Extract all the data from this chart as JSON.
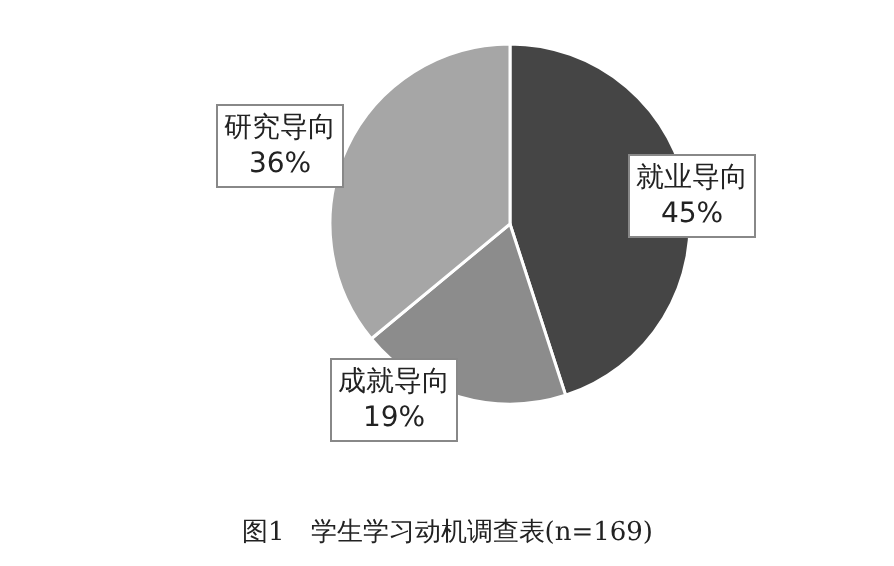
{
  "chart_data": {
    "type": "pie",
    "title": "图1　学生学习动机调查表(n=169)",
    "categories": [
      "就业导向",
      "成就导向",
      "研究导向"
    ],
    "values": [
      45,
      19,
      36
    ],
    "value_labels": [
      "45%",
      "19%",
      "36%"
    ],
    "colors": [
      "#454545",
      "#8c8c8c",
      "#a6a6a6"
    ],
    "legend": false
  }
}
